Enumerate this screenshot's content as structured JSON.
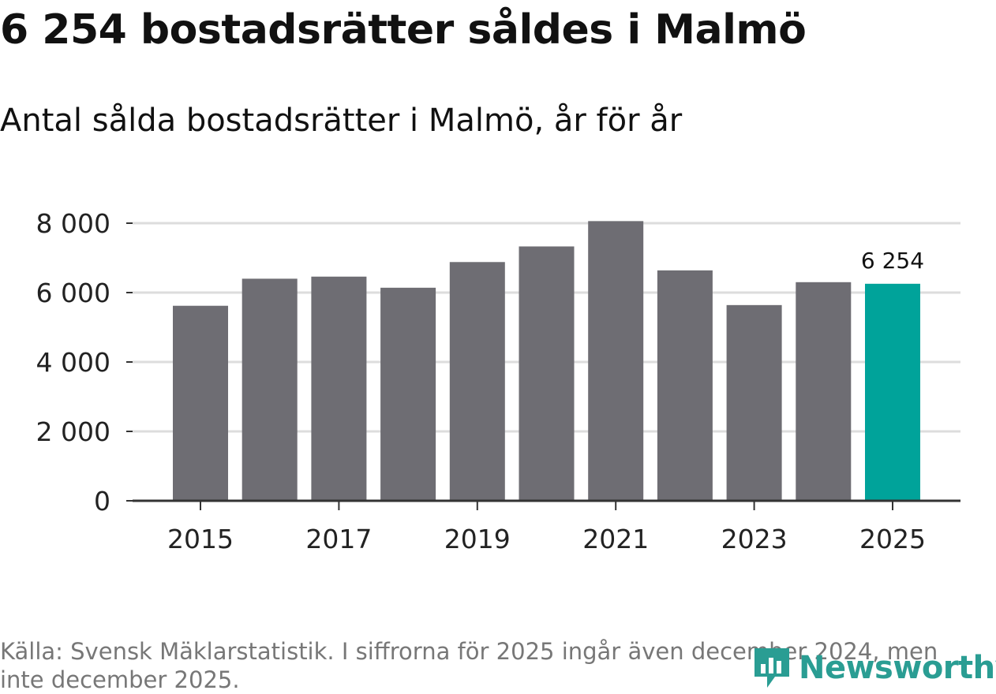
{
  "header": {
    "title": "6 254 bostadsrätter såldes i Malmö",
    "subtitle": "Antal sålda bostadsrätter i Malmö, år för år"
  },
  "footer": {
    "source": "Källa: Svensk Mäklarstatistik. I siffrorna för 2025 ingår även december 2024, men inte december 2025.",
    "logo_text": "Newsworthy"
  },
  "chart_data": {
    "type": "bar",
    "title": "6 254 bostadsrätter såldes i Malmö",
    "subtitle": "Antal sålda bostadsrätter i Malmö, år för år",
    "xlabel": "",
    "ylabel": "",
    "categories": [
      "2015",
      "2016",
      "2017",
      "2018",
      "2019",
      "2020",
      "2021",
      "2022",
      "2023",
      "2024",
      "2025"
    ],
    "values": [
      5620,
      6400,
      6460,
      6140,
      6880,
      7330,
      8060,
      6640,
      5640,
      6300,
      6254
    ],
    "x_tick_labels": [
      "2015",
      "2017",
      "2019",
      "2021",
      "2023",
      "2025"
    ],
    "y_tick_labels": [
      "0",
      "2 000",
      "4 000",
      "6 000",
      "8 000"
    ],
    "y_ticks": [
      0,
      2000,
      4000,
      6000,
      8000
    ],
    "ylim": [
      0,
      8000
    ],
    "grid": true,
    "highlight_index": 10,
    "highlight_label": "6 254",
    "colors": {
      "bar": "#6e6d73",
      "highlight": "#00a39a",
      "grid": "#dddddd",
      "axis": "#333333"
    }
  }
}
